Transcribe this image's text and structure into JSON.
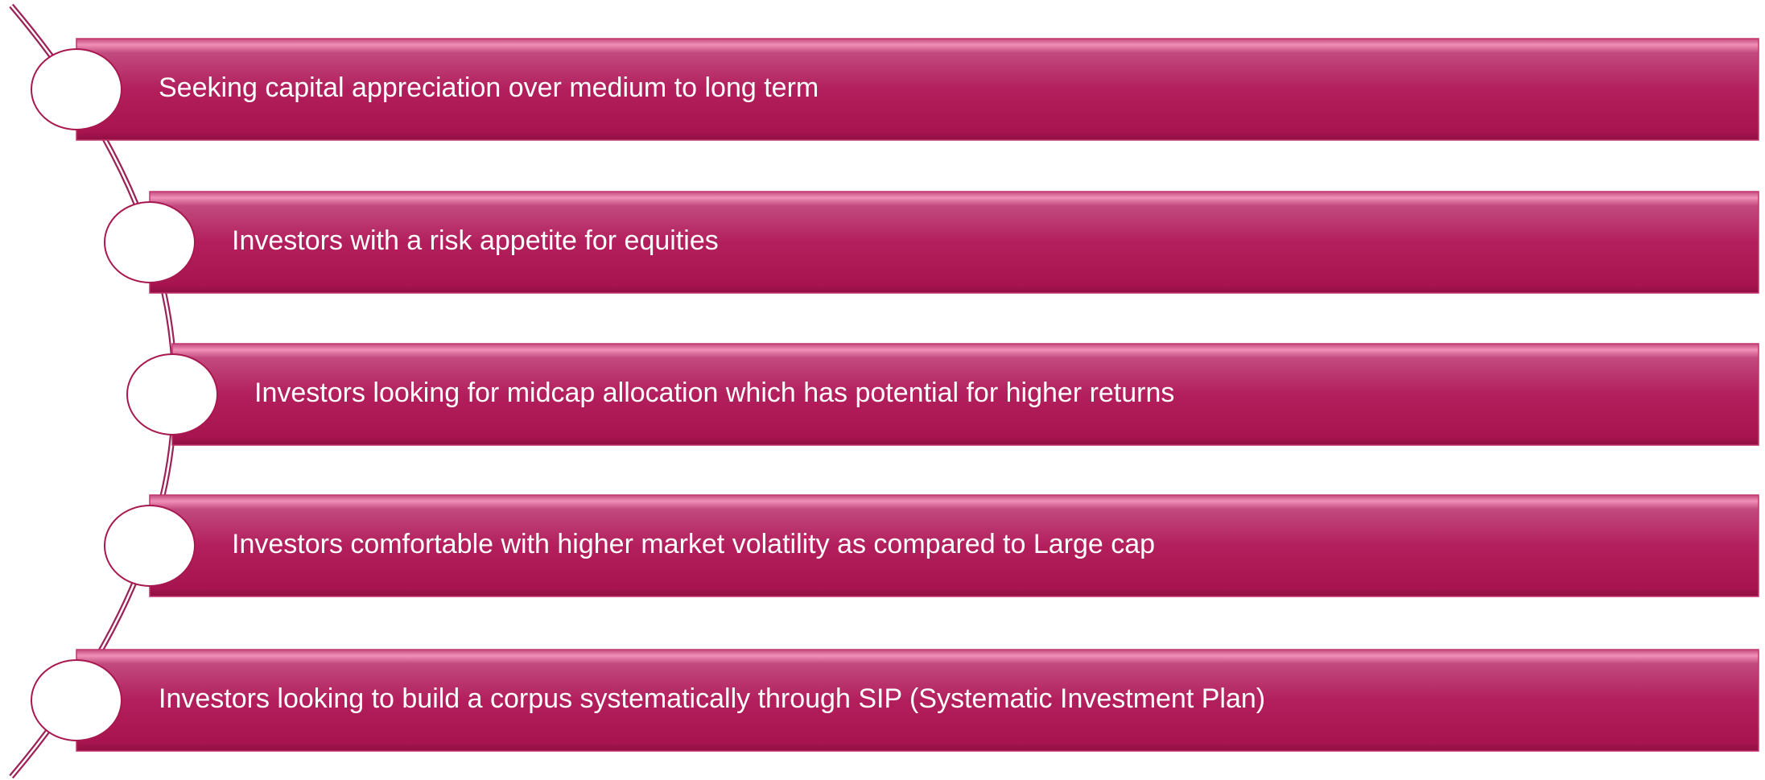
{
  "items": [
    {
      "label": "Seeking capital appreciation over medium to long term"
    },
    {
      "label": "Investors with a risk appetite for equities"
    },
    {
      "label": "Investors looking for midcap allocation which has potential for higher returns"
    },
    {
      "label": "Investors comfortable with higher market volatility as compared to Large cap"
    },
    {
      "label": "Investors looking to build a corpus systematically through SIP (Systematic Investment Plan)"
    }
  ]
}
